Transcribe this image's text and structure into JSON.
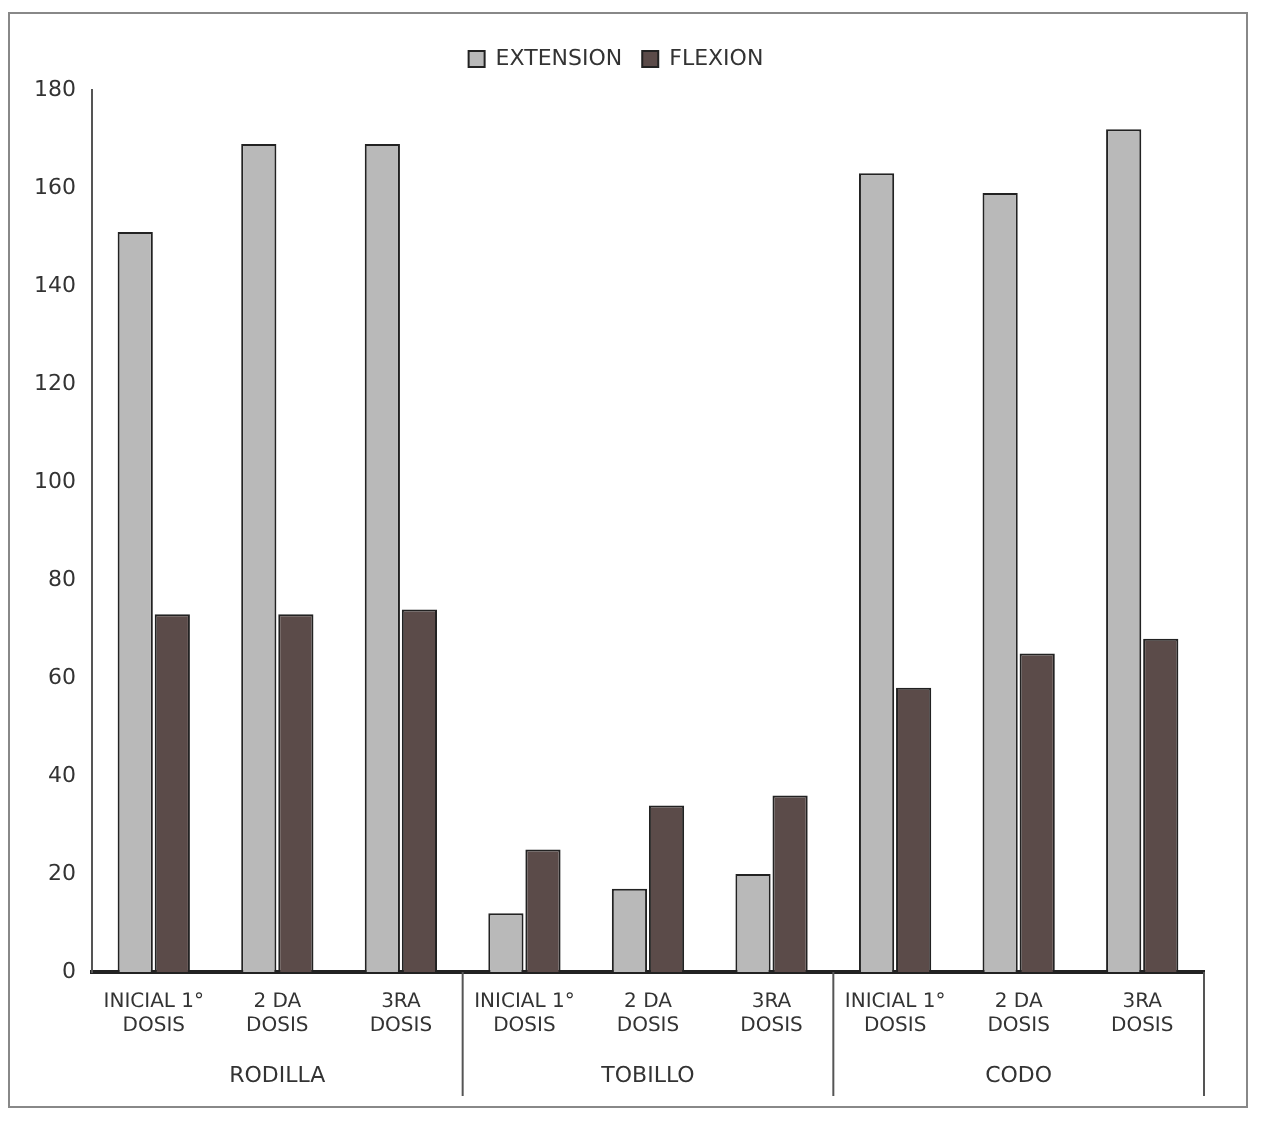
{
  "chart_data": {
    "type": "bar",
    "categories": [
      "INICIAL 1° DOSIS",
      "2 DA DOSIS",
      "3RA DOSIS",
      "INICIAL 1° DOSIS",
      "2 DA DOSIS",
      "3RA DOSIS",
      "INICIAL 1° DOSIS",
      "2 DA DOSIS",
      "3RA DOSIS"
    ],
    "series": [
      {
        "name": "EXTENSION",
        "color": "#b9b9b9",
        "values": [
          151,
          169,
          169,
          12,
          17,
          20,
          163,
          159,
          172
        ]
      },
      {
        "name": "FLEXION",
        "color": "#5b4b49",
        "values": [
          73,
          73,
          74,
          25,
          34,
          36,
          58,
          65,
          68
        ]
      }
    ],
    "annotations": [
      "RODILLA",
      "TOBILLO",
      "CODO"
    ],
    "ylim": [
      0,
      180
    ],
    "yticks": [
      0,
      20,
      40,
      60,
      80,
      100,
      120,
      140,
      160,
      180
    ],
    "grid": false,
    "legend": "top"
  }
}
